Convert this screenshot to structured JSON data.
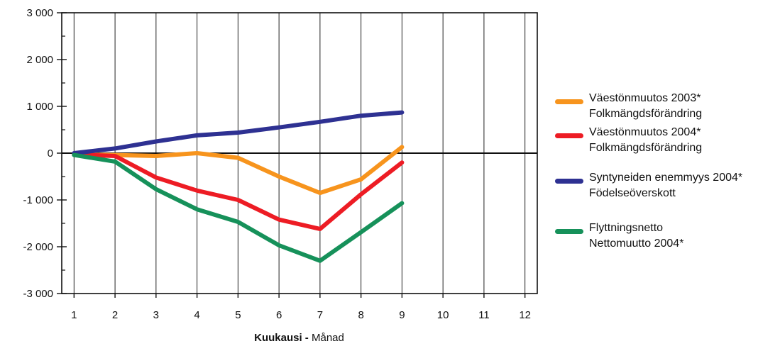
{
  "chart_data": {
    "type": "line",
    "xlabel_bold": "Kuukausi -",
    "xlabel_normal": "Månad",
    "ylim": [
      -3000,
      3000
    ],
    "xlim": [
      0.7,
      12.3
    ],
    "yticks": [
      3000,
      2000,
      1000,
      0,
      -1000,
      -2000,
      -3000
    ],
    "ytick_labels": [
      "3 000",
      "2 000",
      "1 000",
      "0",
      "-1 000",
      "-2 000",
      "-3 000"
    ],
    "xticks": [
      1,
      2,
      3,
      4,
      5,
      6,
      7,
      8,
      9,
      10,
      11,
      12
    ],
    "xtick_labels": [
      "1",
      "2",
      "3",
      "4",
      "5",
      "6",
      "7",
      "8",
      "9",
      "10",
      "11",
      "12"
    ],
    "grid": "vertical",
    "legend_position": "right",
    "series": [
      {
        "name_line1": "Väestönmuutos 2003*",
        "name_line2": "Folkmängdsförändring",
        "color": "#F7941D",
        "x": [
          1,
          2,
          3,
          4,
          5,
          6,
          7,
          8,
          9
        ],
        "values": [
          -30,
          -40,
          -60,
          0,
          -100,
          -500,
          -850,
          -560,
          130
        ]
      },
      {
        "name_line1": "Väestönmuutos 2004*",
        "name_line2": "Folkmängdsförändring",
        "color": "#ED1C24",
        "x": [
          1,
          2,
          3,
          4,
          5,
          6,
          7,
          8,
          9
        ],
        "values": [
          -30,
          -60,
          -520,
          -800,
          -1000,
          -1420,
          -1620,
          -880,
          -200
        ]
      },
      {
        "name_line1": "Syntyneiden enemmyys 2004*",
        "name_line2": "Födelseöverskott",
        "color": "#2E3192",
        "x": [
          1,
          2,
          3,
          4,
          5,
          6,
          7,
          8,
          9
        ],
        "values": [
          0,
          100,
          250,
          380,
          440,
          550,
          670,
          800,
          870
        ]
      },
      {
        "name_line1": "Flyttningsnetto",
        "name_line2": "Nettomuutto 2004*",
        "color": "#16915A",
        "x": [
          1,
          2,
          3,
          4,
          5,
          6,
          7,
          8,
          9
        ],
        "values": [
          -40,
          -180,
          -770,
          -1200,
          -1470,
          -1970,
          -2300,
          -1690,
          -1070
        ]
      }
    ]
  }
}
